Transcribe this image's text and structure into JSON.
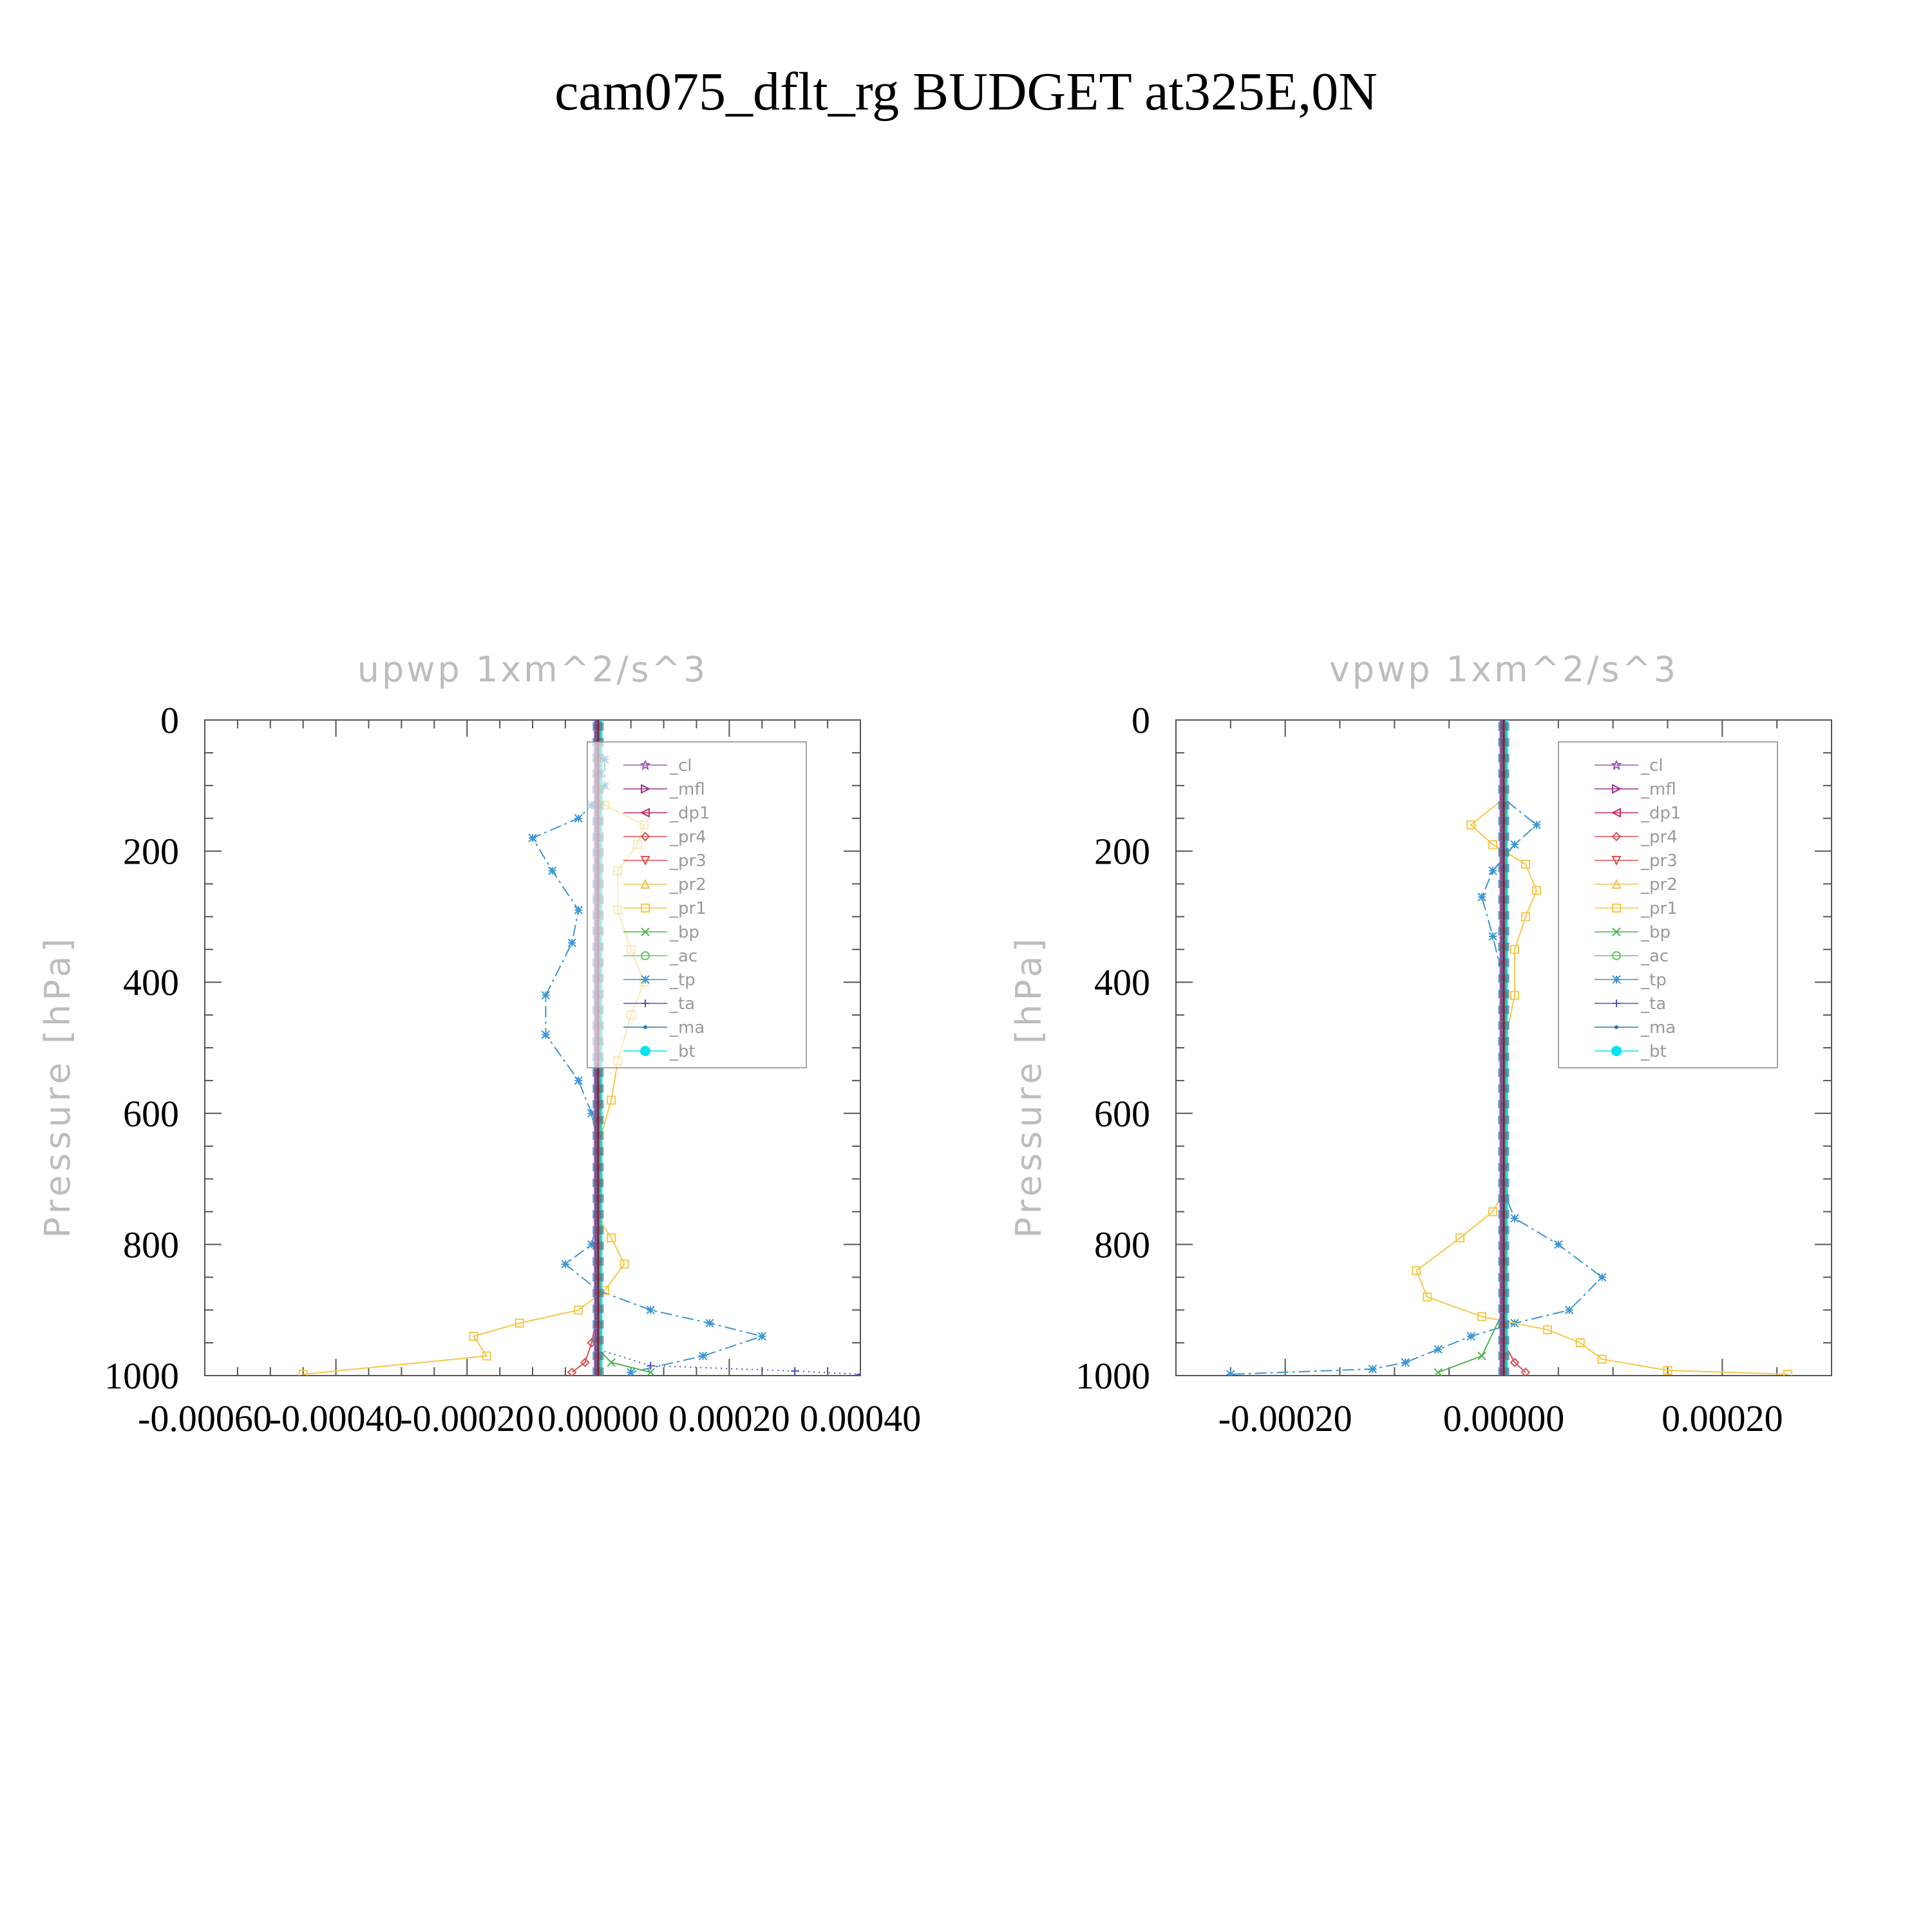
{
  "figure": {
    "title": "cam075_dflt_rg  BUDGET at325E,0N"
  },
  "legend_entries": [
    {
      "name": "_cl",
      "color": "#a05ab4",
      "marker": "star"
    },
    {
      "name": "_mfl",
      "color": "#a0308c",
      "marker": "tri-right"
    },
    {
      "name": "_dp1",
      "color": "#c8285a",
      "marker": "tri-left"
    },
    {
      "name": "_pr4",
      "color": "#dc5050",
      "marker": "diamond"
    },
    {
      "name": "_pr3",
      "color": "#e05050",
      "marker": "tri-down"
    },
    {
      "name": "_pr2",
      "color": "#f0c050",
      "marker": "tri-up"
    },
    {
      "name": "_pr1",
      "color": "#f5c84a",
      "marker": "square"
    },
    {
      "name": "_bp",
      "color": "#50b450",
      "marker": "x"
    },
    {
      "name": "_ac",
      "color": "#64c864",
      "marker": "circle"
    },
    {
      "name": "_tp",
      "color": "#3c96d2",
      "marker": "asterisk"
    },
    {
      "name": "_ta",
      "color": "#5050c8",
      "marker": "plus"
    },
    {
      "name": "_ma",
      "color": "#2878b4",
      "marker": "dot"
    },
    {
      "name": "_bt",
      "color": "#00e5ee",
      "marker": "filled-circle"
    }
  ],
  "chart_data": [
    {
      "type": "line",
      "title": "upwp   1xm^2/s^3",
      "ylabel": "Pressure [hPa]",
      "xlabel": "",
      "xlim": [
        -0.0006,
        0.0004
      ],
      "ylim": [
        1000,
        0
      ],
      "xticks": [
        "-0.00060",
        "-0.00040",
        "-0.00020",
        "0.00000",
        "0.00020",
        "0.00040"
      ],
      "yticks": [
        "0",
        "200",
        "400",
        "600",
        "800",
        "1000"
      ],
      "legend": "top-right",
      "series": [
        {
          "name": "_tp",
          "x": [
            1e-05,
            1e-05,
            -1e-05,
            -3e-05,
            -0.0001,
            -7e-05,
            -3e-05,
            -4e-05,
            -8e-05,
            -8e-05,
            -3e-05,
            -1e-05,
            0.0,
            0.0,
            0.0,
            -1e-05,
            -5e-05,
            0.0,
            8e-05,
            0.00017,
            0.00025,
            0.00016,
            5e-05
          ],
          "y": [
            60,
            100,
            130,
            150,
            180,
            230,
            290,
            340,
            420,
            480,
            550,
            600,
            650,
            700,
            760,
            800,
            830,
            870,
            900,
            920,
            940,
            970,
            995
          ]
        },
        {
          "name": "_pr1",
          "x": [
            0.0,
            0.0,
            1e-05,
            7e-05,
            6e-05,
            3e-05,
            3e-05,
            5e-05,
            7e-05,
            5e-05,
            3e-05,
            2e-05,
            0.0,
            0.0,
            0.0,
            2e-05,
            4e-05,
            1e-05,
            -3e-05,
            -0.00012,
            -0.00019,
            -0.00017,
            -0.00045
          ],
          "y": [
            60,
            100,
            130,
            160,
            190,
            230,
            290,
            350,
            400,
            450,
            520,
            580,
            650,
            700,
            760,
            790,
            830,
            870,
            900,
            920,
            940,
            970,
            998
          ]
        },
        {
          "name": "_bp",
          "x": [
            0.0,
            0.0,
            0.0,
            0.0,
            2e-05,
            8e-05
          ],
          "y": [
            200,
            600,
            900,
            960,
            980,
            995
          ]
        },
        {
          "name": "_ta",
          "x": [
            0.0,
            0.0,
            0.0,
            8e-05,
            0.0003,
            0.0004
          ],
          "y": [
            200,
            600,
            960,
            985,
            993,
            998
          ]
        },
        {
          "name": "_pr4",
          "x": [
            0.0,
            0.0,
            0.0,
            -1e-05,
            -2e-05,
            -4e-05
          ],
          "y": [
            200,
            600,
            900,
            950,
            980,
            995
          ]
        }
      ]
    },
    {
      "type": "line",
      "title": "vpwp   1xm^2/s^3",
      "ylabel": "Pressure [hPa]",
      "xlabel": "",
      "xlim": [
        -0.0003,
        0.0003
      ],
      "ylim": [
        1000,
        0
      ],
      "xticks": [
        "-0.00020",
        "0.00000",
        "0.00020"
      ],
      "yticks": [
        "0",
        "200",
        "400",
        "600",
        "800",
        "1000"
      ],
      "legend": "top-right",
      "series": [
        {
          "name": "_tp",
          "x": [
            0.0,
            0.0,
            3e-05,
            1e-05,
            -1e-05,
            -2e-05,
            -1e-05,
            0.0,
            0.0,
            0.0,
            0.0,
            0.0,
            1e-05,
            5e-05,
            9e-05,
            6e-05,
            1e-05,
            -3e-05,
            -6e-05,
            -9e-05,
            -0.00012,
            -0.00025
          ],
          "y": [
            60,
            120,
            160,
            190,
            230,
            270,
            330,
            400,
            500,
            600,
            680,
            720,
            760,
            800,
            850,
            900,
            920,
            940,
            960,
            980,
            990,
            998
          ]
        },
        {
          "name": "_pr1",
          "x": [
            0.0,
            0.0,
            -3e-05,
            -1e-05,
            2e-05,
            3e-05,
            2e-05,
            1e-05,
            1e-05,
            0.0,
            0.0,
            0.0,
            -1e-05,
            -4e-05,
            -8e-05,
            -7e-05,
            -2e-05,
            4e-05,
            7e-05,
            9e-05,
            0.00015,
            0.00026
          ],
          "y": [
            60,
            120,
            160,
            190,
            220,
            260,
            300,
            350,
            420,
            500,
            600,
            720,
            750,
            790,
            840,
            880,
            910,
            930,
            950,
            975,
            992,
            998
          ]
        },
        {
          "name": "_pr4",
          "x": [
            0.0,
            0.0,
            0.0,
            1e-05,
            2e-05
          ],
          "y": [
            200,
            600,
            950,
            980,
            995
          ]
        },
        {
          "name": "_bp",
          "x": [
            0.0,
            0.0,
            -2e-05,
            -6e-05
          ],
          "y": [
            200,
            900,
            970,
            995
          ]
        }
      ]
    }
  ]
}
